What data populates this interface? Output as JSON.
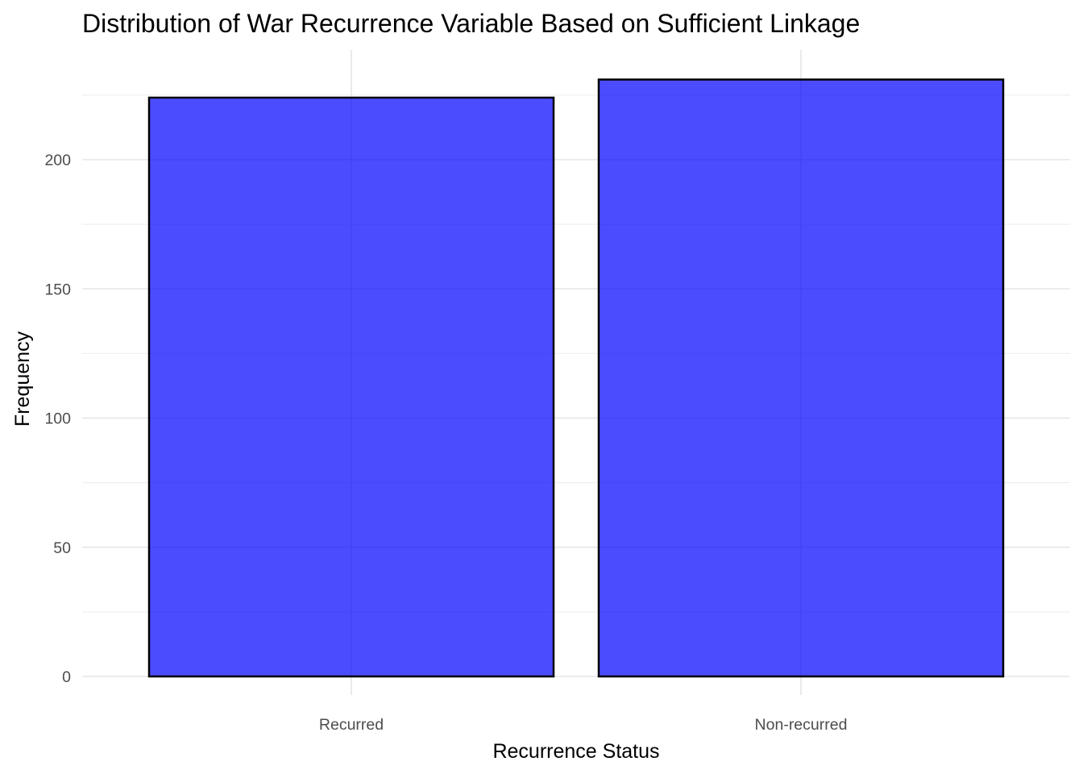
{
  "chart_data": {
    "type": "bar",
    "title": "Distribution of War Recurrence Variable Based on Sufficient Linkage",
    "xlabel": "Recurrence Status",
    "ylabel": "Frequency",
    "categories": [
      "Recurred",
      "Non-recurred"
    ],
    "values": [
      224,
      231
    ],
    "ylim": [
      0,
      242
    ],
    "yticks": [
      0,
      50,
      100,
      150,
      200
    ],
    "ytick_labels": [
      "0",
      "50",
      "100",
      "150",
      "200"
    ],
    "grid": true,
    "legend": "none",
    "bar_color": "#0000ff",
    "bar_outline": "#000000"
  }
}
